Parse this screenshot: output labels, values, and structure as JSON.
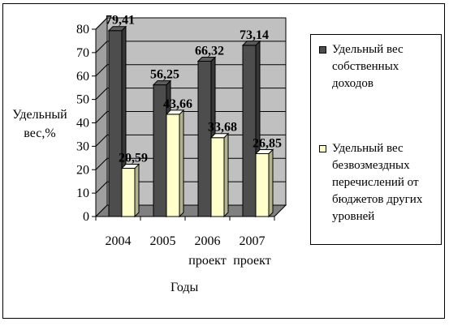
{
  "chart_data": {
    "type": "bar",
    "categories": [
      "2004",
      "2005",
      "2006",
      "2007"
    ],
    "category_sublabels": [
      "",
      "",
      "проект",
      "проект"
    ],
    "series": [
      {
        "name": "Удельный вес собственных доходов",
        "values": [
          79.41,
          56.25,
          66.32,
          73.14
        ],
        "labels": [
          "79,41",
          "56,25",
          "66,32",
          "73,14"
        ],
        "color": "#4d4d4d"
      },
      {
        "name": "Удельный вес безвозмездных перечислений от бюджетов других уровней",
        "values": [
          20.59,
          43.66,
          33.68,
          26.85
        ],
        "labels": [
          "20,59",
          "43,66",
          "33,68",
          "26,85"
        ],
        "color": "#ffffcc"
      }
    ],
    "ylim": [
      0,
      80
    ],
    "yticks": [
      0,
      10,
      20,
      30,
      40,
      50,
      60,
      70,
      80
    ],
    "ylabel": "Удельный вес,%",
    "xlabel": "Годы",
    "grid": true,
    "three_d": true,
    "legend_position": "right"
  }
}
